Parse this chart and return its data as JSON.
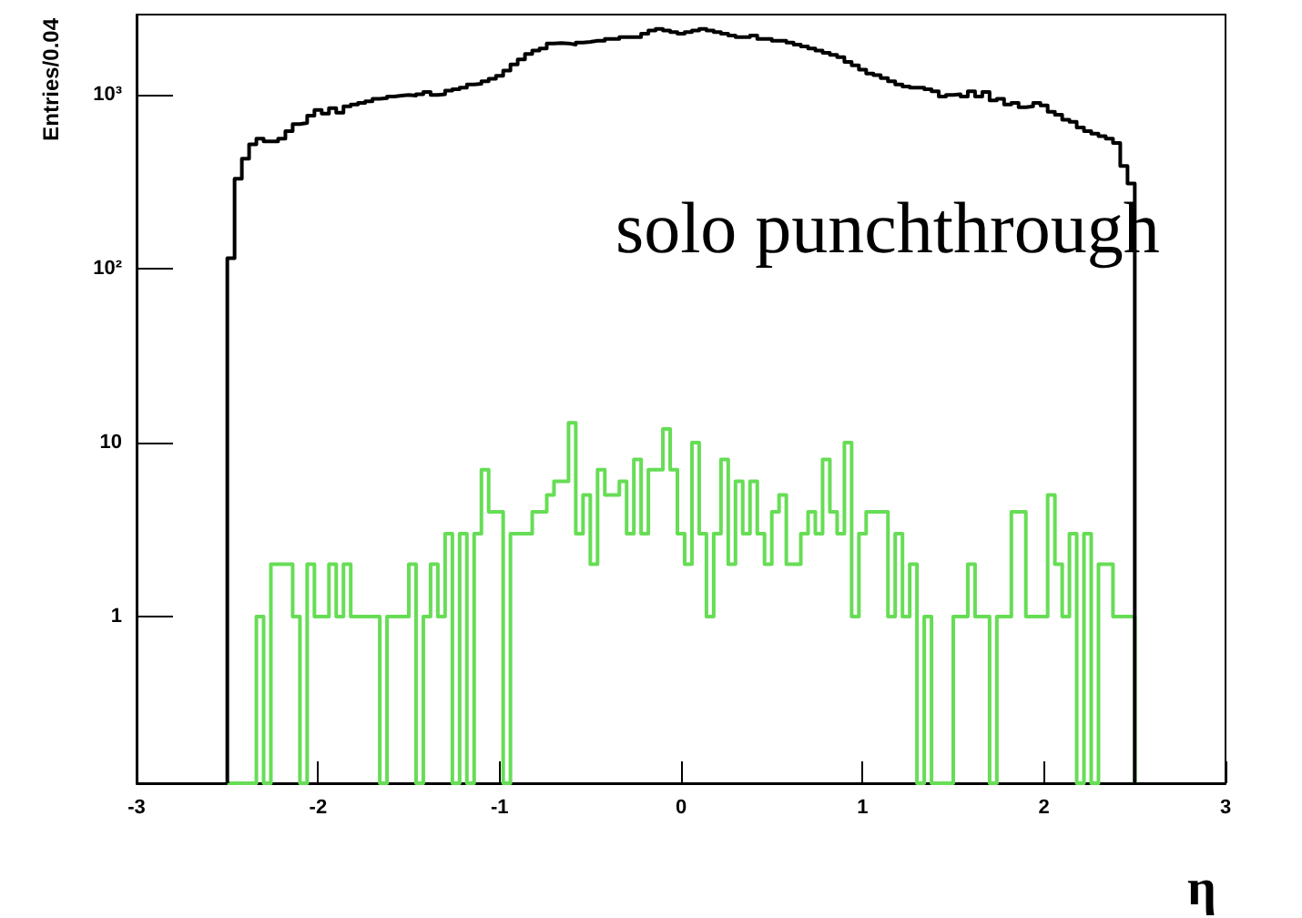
{
  "chart_data": {
    "type": "histogram",
    "ylabel": "Entries/0.04",
    "xlabel": "η",
    "annotations": [
      "solo punchthrough"
    ],
    "bins": [
      -2.5,
      -2.46,
      -2.42,
      -2.38,
      -2.34,
      -2.3,
      -2.26,
      -2.22,
      -2.18,
      -2.14,
      -2.1,
      -2.06,
      -2.02,
      -1.98,
      -1.94,
      -1.9,
      -1.86,
      -1.82,
      -1.78,
      -1.74,
      -1.7,
      -1.66,
      -1.62,
      -1.58,
      -1.54,
      -1.5,
      -1.46,
      -1.42,
      -1.38,
      -1.34,
      -1.3,
      -1.26,
      -1.22,
      -1.18,
      -1.14,
      -1.1,
      -1.06,
      -1.02,
      -0.98,
      -0.94,
      -0.9,
      -0.86,
      -0.82,
      -0.78,
      -0.74,
      -0.7,
      -0.66,
      -0.62,
      -0.58,
      -0.54,
      -0.5,
      -0.46,
      -0.42,
      -0.38,
      -0.34,
      -0.3,
      -0.26,
      -0.22,
      -0.18,
      -0.14,
      -0.1,
      -0.06,
      -0.02,
      0.02,
      0.06,
      0.1,
      0.14,
      0.18,
      0.22,
      0.26,
      0.3,
      0.34,
      0.38,
      0.42,
      0.46,
      0.5,
      0.54,
      0.58,
      0.62,
      0.66,
      0.7,
      0.74,
      0.78,
      0.82,
      0.86,
      0.9,
      0.94,
      0.98,
      1.02,
      1.06,
      1.1,
      1.14,
      1.18,
      1.22,
      1.26,
      1.3,
      1.34,
      1.38,
      1.42,
      1.46,
      1.5,
      1.54,
      1.58,
      1.62,
      1.66,
      1.7,
      1.74,
      1.78,
      1.82,
      1.86,
      1.9,
      1.94,
      1.98,
      2.02,
      2.06,
      2.1,
      2.14,
      2.18,
      2.22,
      2.26,
      2.3,
      2.34,
      2.38,
      2.42,
      2.46,
      2.5
    ],
    "series": [
      {
        "color": "#000000",
        "values": [
          115,
          330,
          430,
          520,
          560,
          540,
          540,
          560,
          620,
          680,
          690,
          760,
          820,
          780,
          840,
          790,
          860,
          880,
          900,
          920,
          950,
          960,
          980,
          990,
          1000,
          990,
          1010,
          1040,
          1000,
          1010,
          1060,
          1080,
          1100,
          1150,
          1160,
          1200,
          1240,
          1290,
          1380,
          1500,
          1600,
          1720,
          1800,
          1850,
          1980,
          1990,
          1980,
          1950,
          2000,
          2020,
          2050,
          2050,
          2100,
          2100,
          2150,
          2150,
          2150,
          2250,
          2350,
          2400,
          2350,
          2300,
          2250,
          2300,
          2350,
          2400,
          2350,
          2300,
          2250,
          2200,
          2150,
          2150,
          2200,
          2100,
          2100,
          2050,
          2050,
          2000,
          1950,
          1900,
          1850,
          1800,
          1750,
          1700,
          1650,
          1550,
          1480,
          1400,
          1330,
          1300,
          1250,
          1200,
          1150,
          1120,
          1100,
          1100,
          1080,
          1050,
          980,
          1000,
          1010,
          980,
          1050,
          980,
          1040,
          930,
          950,
          880,
          900,
          850,
          860,
          900,
          870,
          800,
          770,
          720,
          700,
          650,
          620,
          600,
          580,
          560,
          530,
          390,
          310
        ]
      },
      {
        "color": "#66dd55",
        "values": [
          null,
          null,
          null,
          null,
          1,
          null,
          2,
          2,
          2,
          1,
          null,
          2,
          1,
          1,
          2,
          1,
          2,
          1,
          1,
          1,
          1,
          null,
          1,
          1,
          1,
          2,
          null,
          1,
          2,
          1,
          3,
          null,
          3,
          null,
          3,
          7,
          4,
          4,
          null,
          3,
          3,
          3,
          4,
          4,
          5,
          6,
          6,
          13,
          3,
          5,
          2,
          7,
          5,
          5,
          6,
          3,
          8,
          3,
          7,
          7,
          12,
          7,
          3,
          2,
          10,
          3,
          1,
          3,
          8,
          2,
          6,
          3,
          6,
          3,
          2,
          4,
          5,
          2,
          2,
          3,
          4,
          3,
          8,
          4,
          3,
          10,
          1,
          3,
          4,
          4,
          4,
          1,
          3,
          1,
          2,
          null,
          1,
          null,
          null,
          null,
          1,
          1,
          2,
          1,
          1,
          null,
          1,
          1,
          4,
          4,
          1,
          1,
          1,
          5,
          2,
          1,
          3,
          null,
          3,
          null,
          2,
          2,
          1,
          1,
          1
        ]
      }
    ],
    "log": "y",
    "xlim": [
      -3,
      3
    ],
    "xticks": [
      -3,
      -2,
      -1,
      0,
      1,
      2,
      3
    ],
    "ylim": [
      0.11,
      2900
    ],
    "yticks": [
      1,
      10,
      {
        "value": 100,
        "label": "10²"
      },
      {
        "value": 1000,
        "label": "10³"
      }
    ],
    "grid": false
  }
}
